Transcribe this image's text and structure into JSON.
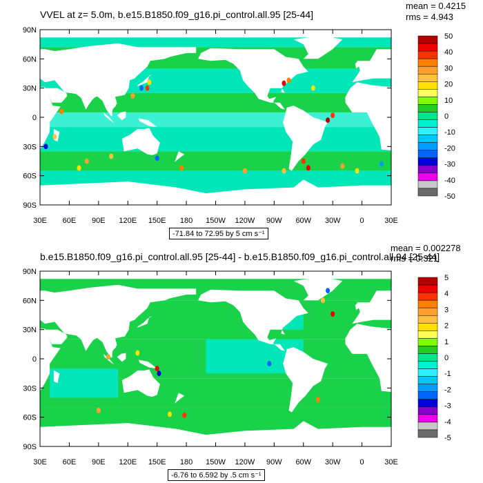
{
  "colors": {
    "land": "#ffffff",
    "ocean_green": "#1ad24a",
    "ocean_cyan": "#00e6b8",
    "ocean_light": "#3cf0d4",
    "frame": "#000000"
  },
  "chart_data": [
    {
      "type": "heatmap",
      "title": "VVEL at z=   5.0m, b.e15.B1850.f09_g16.pi_control.all.95 [25-44]",
      "mean_text": "mean = 0.4215",
      "rms_text": "rms = 4.943",
      "range_text": "-71.84 to 72.95 by 5 cm s⁻¹",
      "x_ticks": [
        "30E",
        "60E",
        "90E",
        "120E",
        "150E",
        "180",
        "150W",
        "120W",
        "90W",
        "60W",
        "30W",
        "0",
        "30E"
      ],
      "y_ticks": [
        "90N",
        "60N",
        "30N",
        "0",
        "30S",
        "60S",
        "90S"
      ],
      "xlim": [
        30,
        390
      ],
      "ylim": [
        -90,
        90
      ],
      "colorbar_labels": [
        "50",
        "40",
        "30",
        "20",
        "10",
        "0",
        "-10",
        "-20",
        "-30",
        "-40",
        "-50"
      ],
      "colorbar_colors": [
        "#b30000",
        "#ee0000",
        "#ff3300",
        "#ff7f00",
        "#ff9f30",
        "#ffbf40",
        "#ffe000",
        "#ffff55",
        "#80ff00",
        "#22cc22",
        "#00e68c",
        "#00f0d0",
        "#30f0ff",
        "#00c8ff",
        "#009cff",
        "#0064ff",
        "#0000dd",
        "#8800cc",
        "#ee00ee",
        "#c8c8c8",
        "#6b6b6b"
      ]
    },
    {
      "type": "heatmap",
      "title": "b.e15.B1850.f09_g16.pi_control.all.95 [25-44] - b.e15.B1850.f09_g16.pi_control.all.94 [25-44]",
      "mean_text": "mean = 0.002278",
      "rms_text": "rms = 0.321",
      "range_text": "-6.76 to 6.592 by .5 cm s⁻¹",
      "x_ticks": [
        "30E",
        "60E",
        "90E",
        "120E",
        "150E",
        "180",
        "150W",
        "120W",
        "90W",
        "60W",
        "30W",
        "0",
        "30E"
      ],
      "y_ticks": [
        "90N",
        "60N",
        "30N",
        "0",
        "30S",
        "60S",
        "90S"
      ],
      "xlim": [
        30,
        390
      ],
      "ylim": [
        -90,
        90
      ],
      "colorbar_labels": [
        "5",
        "4",
        "3",
        "2",
        "1",
        "0",
        "-1",
        "-2",
        "-3",
        "-4",
        "-5"
      ],
      "colorbar_colors": [
        "#b30000",
        "#ee0000",
        "#ff3300",
        "#ff7f00",
        "#ff9f30",
        "#ffbf40",
        "#ffe000",
        "#ffff55",
        "#80ff00",
        "#22cc22",
        "#00e68c",
        "#00f0d0",
        "#30f0ff",
        "#00c8ff",
        "#009cff",
        "#0064ff",
        "#0000dd",
        "#8800cc",
        "#ee00ee",
        "#c8c8c8",
        "#6b6b6b"
      ]
    }
  ]
}
